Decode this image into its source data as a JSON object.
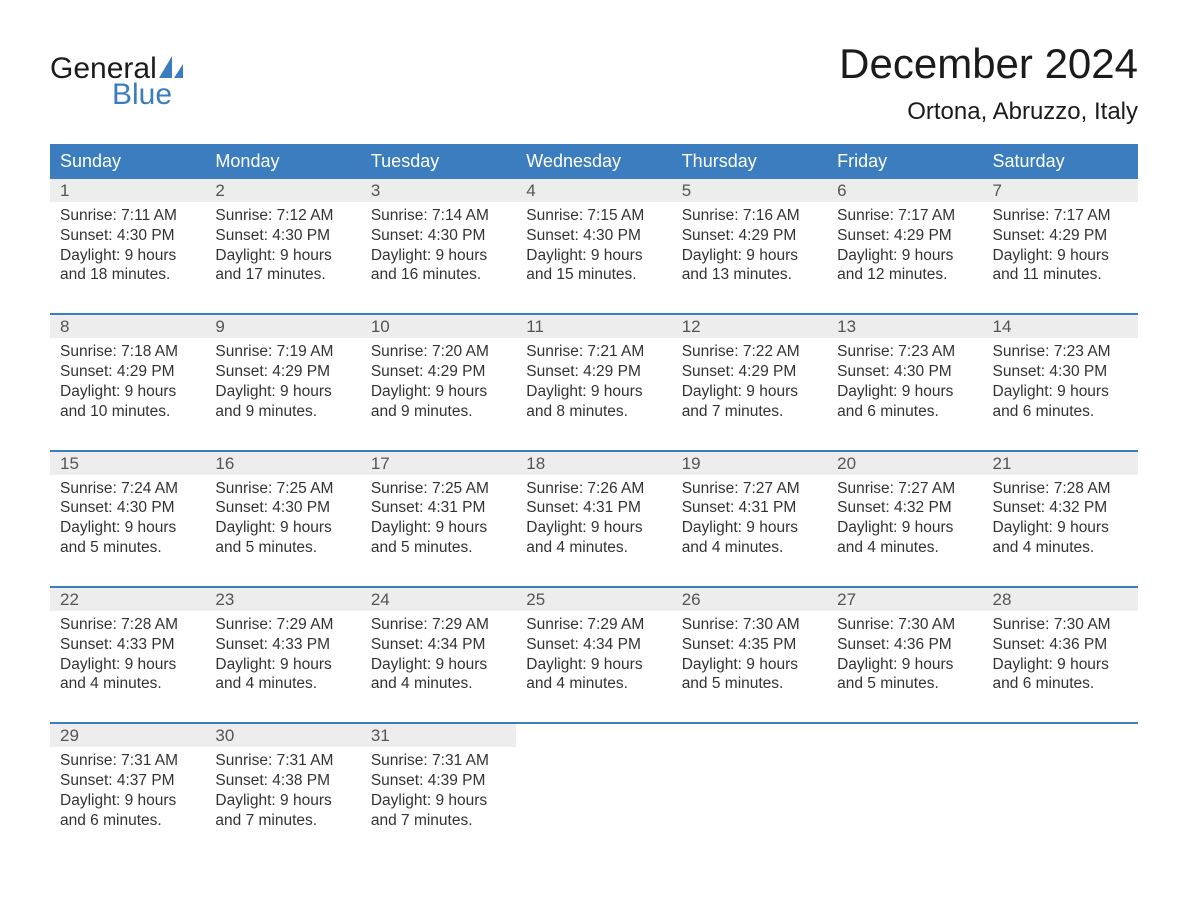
{
  "brand": {
    "text1": "General",
    "text2": "Blue",
    "text1_color": "#1b1b1b",
    "text2_color": "#3b7dbf",
    "icon_color": "#3b7dbf"
  },
  "title": "December 2024",
  "location": "Ortona, Abruzzo, Italy",
  "colors": {
    "header_bg": "#3b7dbf",
    "header_text": "#ffffff",
    "daynum_bg": "#ededed",
    "daynum_text": "#555555",
    "body_text": "#333333",
    "sep": "#3b7dbf",
    "page_bg": "#ffffff"
  },
  "font": {
    "title_size": 42,
    "location_size": 24,
    "dow_size": 18,
    "daynum_size": 17,
    "body_size": 15.5
  },
  "days_of_week": [
    "Sunday",
    "Monday",
    "Tuesday",
    "Wednesday",
    "Thursday",
    "Friday",
    "Saturday"
  ],
  "weeks": [
    [
      {
        "n": "1",
        "sr": "Sunrise: 7:11 AM",
        "ss": "Sunset: 4:30 PM",
        "d1": "Daylight: 9 hours",
        "d2": "and 18 minutes."
      },
      {
        "n": "2",
        "sr": "Sunrise: 7:12 AM",
        "ss": "Sunset: 4:30 PM",
        "d1": "Daylight: 9 hours",
        "d2": "and 17 minutes."
      },
      {
        "n": "3",
        "sr": "Sunrise: 7:14 AM",
        "ss": "Sunset: 4:30 PM",
        "d1": "Daylight: 9 hours",
        "d2": "and 16 minutes."
      },
      {
        "n": "4",
        "sr": "Sunrise: 7:15 AM",
        "ss": "Sunset: 4:30 PM",
        "d1": "Daylight: 9 hours",
        "d2": "and 15 minutes."
      },
      {
        "n": "5",
        "sr": "Sunrise: 7:16 AM",
        "ss": "Sunset: 4:29 PM",
        "d1": "Daylight: 9 hours",
        "d2": "and 13 minutes."
      },
      {
        "n": "6",
        "sr": "Sunrise: 7:17 AM",
        "ss": "Sunset: 4:29 PM",
        "d1": "Daylight: 9 hours",
        "d2": "and 12 minutes."
      },
      {
        "n": "7",
        "sr": "Sunrise: 7:17 AM",
        "ss": "Sunset: 4:29 PM",
        "d1": "Daylight: 9 hours",
        "d2": "and 11 minutes."
      }
    ],
    [
      {
        "n": "8",
        "sr": "Sunrise: 7:18 AM",
        "ss": "Sunset: 4:29 PM",
        "d1": "Daylight: 9 hours",
        "d2": "and 10 minutes."
      },
      {
        "n": "9",
        "sr": "Sunrise: 7:19 AM",
        "ss": "Sunset: 4:29 PM",
        "d1": "Daylight: 9 hours",
        "d2": "and 9 minutes."
      },
      {
        "n": "10",
        "sr": "Sunrise: 7:20 AM",
        "ss": "Sunset: 4:29 PM",
        "d1": "Daylight: 9 hours",
        "d2": "and 9 minutes."
      },
      {
        "n": "11",
        "sr": "Sunrise: 7:21 AM",
        "ss": "Sunset: 4:29 PM",
        "d1": "Daylight: 9 hours",
        "d2": "and 8 minutes."
      },
      {
        "n": "12",
        "sr": "Sunrise: 7:22 AM",
        "ss": "Sunset: 4:29 PM",
        "d1": "Daylight: 9 hours",
        "d2": "and 7 minutes."
      },
      {
        "n": "13",
        "sr": "Sunrise: 7:23 AM",
        "ss": "Sunset: 4:30 PM",
        "d1": "Daylight: 9 hours",
        "d2": "and 6 minutes."
      },
      {
        "n": "14",
        "sr": "Sunrise: 7:23 AM",
        "ss": "Sunset: 4:30 PM",
        "d1": "Daylight: 9 hours",
        "d2": "and 6 minutes."
      }
    ],
    [
      {
        "n": "15",
        "sr": "Sunrise: 7:24 AM",
        "ss": "Sunset: 4:30 PM",
        "d1": "Daylight: 9 hours",
        "d2": "and 5 minutes."
      },
      {
        "n": "16",
        "sr": "Sunrise: 7:25 AM",
        "ss": "Sunset: 4:30 PM",
        "d1": "Daylight: 9 hours",
        "d2": "and 5 minutes."
      },
      {
        "n": "17",
        "sr": "Sunrise: 7:25 AM",
        "ss": "Sunset: 4:31 PM",
        "d1": "Daylight: 9 hours",
        "d2": "and 5 minutes."
      },
      {
        "n": "18",
        "sr": "Sunrise: 7:26 AM",
        "ss": "Sunset: 4:31 PM",
        "d1": "Daylight: 9 hours",
        "d2": "and 4 minutes."
      },
      {
        "n": "19",
        "sr": "Sunrise: 7:27 AM",
        "ss": "Sunset: 4:31 PM",
        "d1": "Daylight: 9 hours",
        "d2": "and 4 minutes."
      },
      {
        "n": "20",
        "sr": "Sunrise: 7:27 AM",
        "ss": "Sunset: 4:32 PM",
        "d1": "Daylight: 9 hours",
        "d2": "and 4 minutes."
      },
      {
        "n": "21",
        "sr": "Sunrise: 7:28 AM",
        "ss": "Sunset: 4:32 PM",
        "d1": "Daylight: 9 hours",
        "d2": "and 4 minutes."
      }
    ],
    [
      {
        "n": "22",
        "sr": "Sunrise: 7:28 AM",
        "ss": "Sunset: 4:33 PM",
        "d1": "Daylight: 9 hours",
        "d2": "and 4 minutes."
      },
      {
        "n": "23",
        "sr": "Sunrise: 7:29 AM",
        "ss": "Sunset: 4:33 PM",
        "d1": "Daylight: 9 hours",
        "d2": "and 4 minutes."
      },
      {
        "n": "24",
        "sr": "Sunrise: 7:29 AM",
        "ss": "Sunset: 4:34 PM",
        "d1": "Daylight: 9 hours",
        "d2": "and 4 minutes."
      },
      {
        "n": "25",
        "sr": "Sunrise: 7:29 AM",
        "ss": "Sunset: 4:34 PM",
        "d1": "Daylight: 9 hours",
        "d2": "and 4 minutes."
      },
      {
        "n": "26",
        "sr": "Sunrise: 7:30 AM",
        "ss": "Sunset: 4:35 PM",
        "d1": "Daylight: 9 hours",
        "d2": "and 5 minutes."
      },
      {
        "n": "27",
        "sr": "Sunrise: 7:30 AM",
        "ss": "Sunset: 4:36 PM",
        "d1": "Daylight: 9 hours",
        "d2": "and 5 minutes."
      },
      {
        "n": "28",
        "sr": "Sunrise: 7:30 AM",
        "ss": "Sunset: 4:36 PM",
        "d1": "Daylight: 9 hours",
        "d2": "and 6 minutes."
      }
    ],
    [
      {
        "n": "29",
        "sr": "Sunrise: 7:31 AM",
        "ss": "Sunset: 4:37 PM",
        "d1": "Daylight: 9 hours",
        "d2": "and 6 minutes."
      },
      {
        "n": "30",
        "sr": "Sunrise: 7:31 AM",
        "ss": "Sunset: 4:38 PM",
        "d1": "Daylight: 9 hours",
        "d2": "and 7 minutes."
      },
      {
        "n": "31",
        "sr": "Sunrise: 7:31 AM",
        "ss": "Sunset: 4:39 PM",
        "d1": "Daylight: 9 hours",
        "d2": "and 7 minutes."
      },
      null,
      null,
      null,
      null
    ]
  ]
}
